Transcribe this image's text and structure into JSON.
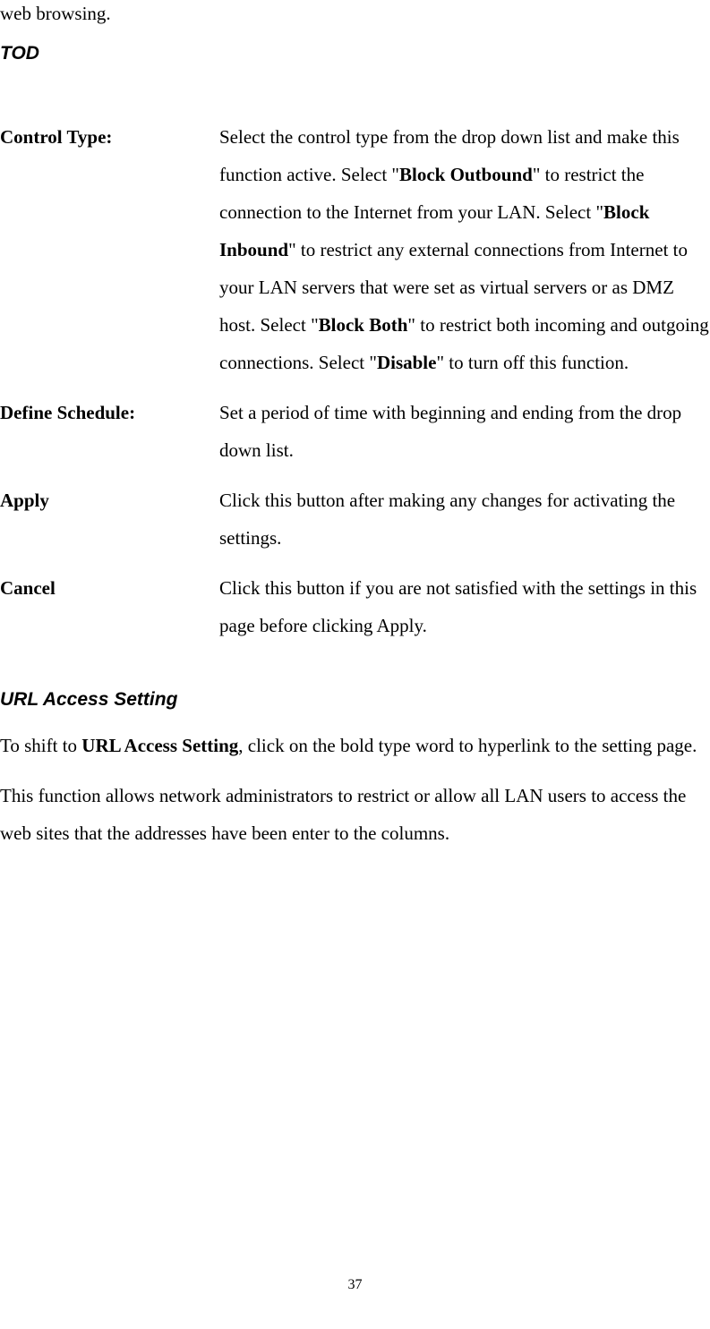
{
  "fragment": "web browsing.",
  "heading1": "TOD",
  "definitions": [
    {
      "term": "Control Type:",
      "pre1": "Select the control type from the drop down list and make this function active. Select \"",
      "b1": "Block Outbound",
      "mid1": "\" to restrict the connection to the Internet from your LAN. Select \"",
      "b2": "Block Inbound",
      "mid2": "\" to restrict any external connections from Internet to your LAN servers that were set as virtual servers or as DMZ host. Select \"",
      "b3": "Block Both",
      "mid3": "\" to restrict both incoming and outgoing connections. Select \"",
      "b4": "Disable",
      "post": "\" to turn off this function."
    },
    {
      "term": "Define Schedule:",
      "desc": "Set a period of time with beginning and ending from the drop down list."
    },
    {
      "term": "Apply",
      "desc": "Click this button after making any changes for activating the settings."
    },
    {
      "term": "Cancel",
      "desc": "Click this button if you are not satisfied with the settings in this page before clicking Apply."
    }
  ],
  "heading2": "URL Access Setting",
  "para1_pre": "To shift to ",
  "para1_bold": "URL Access Setting",
  "para1_post": ", click on the bold type word to hyperlink to the setting page.",
  "para2": "This function allows network administrators to restrict or allow all LAN users to access the web sites that the addresses have been enter to the columns.",
  "page_number": "37"
}
